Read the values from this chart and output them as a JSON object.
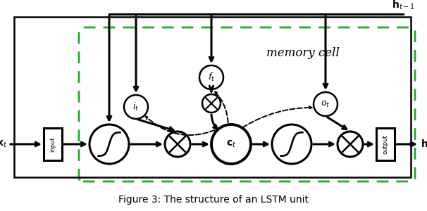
{
  "title": "Figure 3: The structure of an LSTM unit",
  "title_fontsize": 10,
  "bg_color": "#ffffff",
  "line_color": "#000000",
  "green_dash_color": "#22aa22",
  "memory_cell_label": "memory cell",
  "memory_cell_fontsize": 12,
  "input_label": "input",
  "output_label": "output"
}
